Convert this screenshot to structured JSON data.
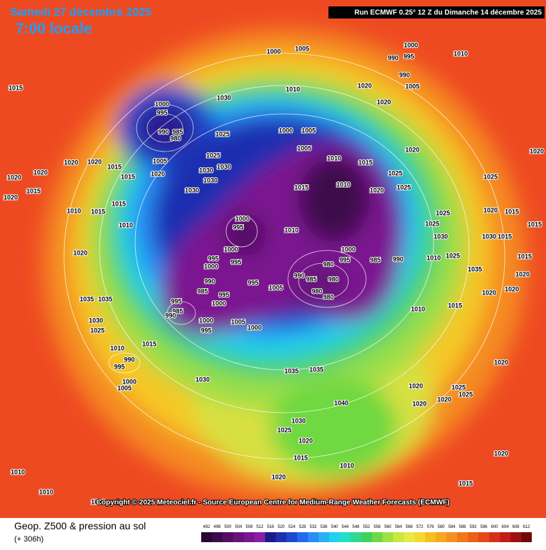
{
  "header": {
    "date": "Samedi 27 décembre 2025",
    "time": "7:00 locale",
    "run": "Run ECMWF 0.25° 12 Z du Dimanche 14 décembre 2025"
  },
  "copyright": "Copyright © 2025 Meteociel.fr - Source European Centre for Medium-Range Weather Forecasts (ECMWF)",
  "footer": {
    "title": "Geop. Z500 & pression au sol",
    "lead": "(+ 306h)"
  },
  "colorbar": {
    "values": [
      492,
      496,
      500,
      504,
      508,
      512,
      516,
      520,
      524,
      528,
      532,
      536,
      540,
      544,
      548,
      552,
      556,
      560,
      564,
      568,
      572,
      576,
      580,
      584,
      588,
      592,
      596,
      600,
      604,
      608,
      612
    ],
    "colors": [
      "#2a0633",
      "#3d0a4c",
      "#520e64",
      "#66127a",
      "#7b1690",
      "#8c1ca6",
      "#1a1a8c",
      "#1f2fb0",
      "#1f4ad0",
      "#2468ee",
      "#2a8cf5",
      "#2aaef5",
      "#22d0f0",
      "#20e0c8",
      "#30d890",
      "#40d060",
      "#70d840",
      "#a0e040",
      "#c8e840",
      "#e8e848",
      "#f5d830",
      "#f5c020",
      "#f5a820",
      "#f59020",
      "#f07818",
      "#eb6018",
      "#e64818",
      "#d83018",
      "#c01c18",
      "#a01010",
      "#700808"
    ]
  },
  "isobar_labels": [
    "1000",
    "1005",
    "1000",
    "995",
    "990",
    "1010",
    "1015",
    "1030",
    "1010",
    "1020",
    "990",
    "1005",
    "1020",
    "1000",
    "995",
    "990",
    "985",
    "980",
    "1025",
    "1000",
    "1005",
    "1005",
    "1020",
    "1020",
    "1005",
    "1025",
    "1030",
    "1030",
    "1030",
    "1030",
    "1020",
    "1015",
    "1015",
    "1010",
    "1015",
    "1025",
    "1010",
    "1015",
    "1020",
    "1025",
    "1025",
    "1020",
    "1020",
    "1020",
    "1020",
    "1020",
    "1015",
    "1010",
    "1015",
    "1015",
    "1010",
    "1000",
    "995",
    "1010",
    "1000",
    "1020",
    "995",
    "1000",
    "995",
    "1000",
    "995",
    "980",
    "985",
    "990",
    "990",
    "985",
    "980",
    "980",
    "980",
    "995",
    "1005",
    "990",
    "985",
    "995",
    "995",
    "985",
    "990",
    "1000",
    "1000",
    "995",
    "1005",
    "1000",
    "1035",
    "1035",
    "1030",
    "1025",
    "1015",
    "1010",
    "990",
    "995",
    "1000",
    "1005",
    "1030",
    "1035",
    "1035",
    "1040",
    "1020",
    "1020",
    "1020",
    "1025",
    "1025",
    "1020",
    "1025",
    "1030",
    "1020",
    "1020",
    "1015",
    "1010",
    "1010",
    "1010",
    "1030",
    "1020",
    "1015",
    "1010",
    "1015",
    "1015",
    "1030",
    "1020",
    "1015",
    "1020",
    "1020",
    "1035",
    "1010",
    "1025",
    "1030",
    "1025",
    "1025",
    "1020",
    "1015",
    "1015"
  ]
}
